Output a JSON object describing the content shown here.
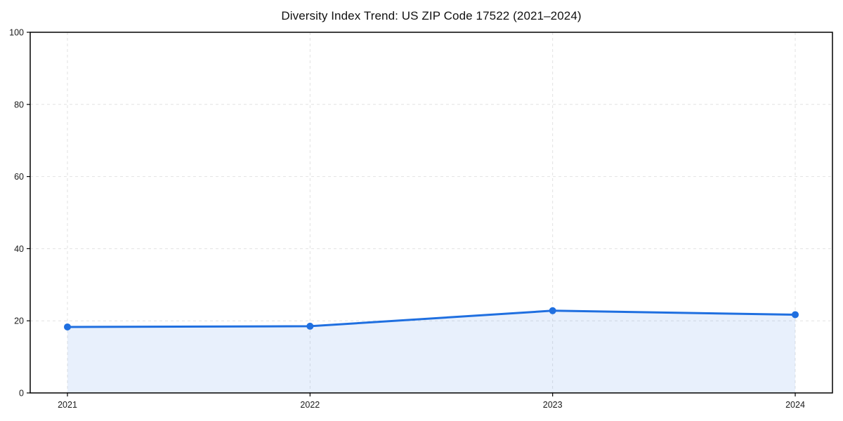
{
  "title": "Diversity Index Trend: US ZIP Code 17522 (2021–2024)",
  "chart_data": {
    "type": "area",
    "title": "Diversity Index Trend: US ZIP Code 17522 (2021–2024)",
    "categories": [
      "2021",
      "2022",
      "2023",
      "2024"
    ],
    "values": [
      18.3,
      18.5,
      22.8,
      21.7
    ],
    "series_name": "Diversity Index",
    "xlabel": "",
    "ylabel": "",
    "ylim": [
      0,
      100
    ],
    "yticks": [
      0,
      20,
      40,
      60,
      80,
      100
    ],
    "grid": true,
    "legend": "none",
    "colors": {
      "line": "#1f6fe0",
      "marker": "#1f6fe0",
      "fill": "rgba(31,111,224,0.10)",
      "grid": "#e2e2e2",
      "axis": "#000000",
      "tick_label": "#1a1a1a"
    }
  }
}
